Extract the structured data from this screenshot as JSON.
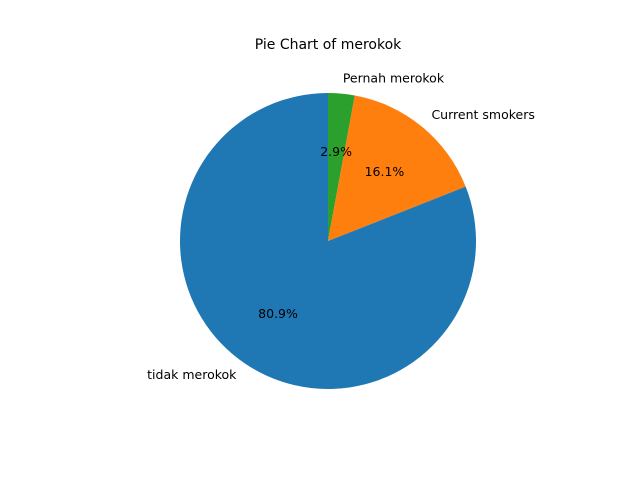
{
  "chart_data": {
    "type": "pie",
    "title": "Pie Chart of merokok",
    "categories": [
      "Pernah merokok",
      "Current smokers",
      "tidak merokok"
    ],
    "values": [
      2.9,
      16.1,
      80.9
    ],
    "percent_labels": [
      "2.9%",
      "16.1%",
      "80.9%"
    ],
    "colors": [
      "#2ca02c",
      "#ff7f0e",
      "#1f77b4"
    ],
    "start_angle_deg": 90,
    "direction": "clockwise",
    "legend": "none"
  }
}
